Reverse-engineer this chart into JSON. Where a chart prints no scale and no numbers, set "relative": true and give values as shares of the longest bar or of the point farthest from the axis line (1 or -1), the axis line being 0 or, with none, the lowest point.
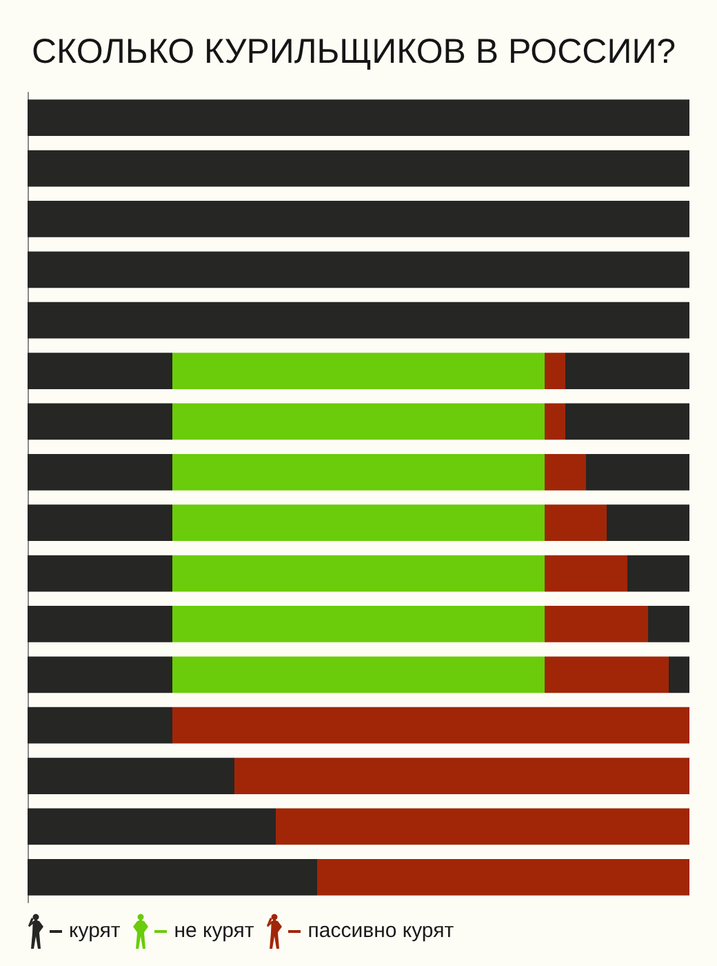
{
  "chart_data": {
    "type": "bar",
    "orientation": "horizontal",
    "stacked": true,
    "relative": true,
    "title": "СКОЛЬКО КУРИЛЬЩИКОВ В РОССИИ?",
    "categories": [
      null,
      null,
      null,
      null,
      null,
      null,
      null,
      null,
      null,
      null,
      null,
      null,
      null,
      null,
      null,
      null
    ],
    "legend": "bottom left",
    "series": [
      {
        "name": "курят",
        "color": "#262624",
        "values": [
          1,
          1,
          1,
          1,
          1,
          0.21875,
          0.21875,
          0.21875,
          0.21875,
          0.21875,
          0.21875,
          0.21875,
          0.21875,
          0.3125,
          0.375,
          0.4375
        ]
      },
      {
        "name": "не курят",
        "color": "#6acc0a",
        "values": [
          0,
          0,
          0,
          0,
          0,
          0.5625,
          0.5625,
          0.5625,
          0.5625,
          0.5625,
          0.5625,
          0.5625,
          0,
          0,
          0,
          0
        ]
      },
      {
        "name": "пассивно курят",
        "color": "#a12608",
        "values": [
          0,
          0,
          0,
          0,
          0,
          0.03125,
          0.03125,
          0.0625,
          0.09375,
          0.125,
          0.15625,
          0.1875,
          0.78125,
          0.6875,
          0.625,
          0.5625
        ]
      },
      {
        "color": "#262624",
        "values": [
          0,
          0,
          0,
          0,
          0,
          0.1875,
          0.1875,
          0.15625,
          0.125,
          0.09375,
          0.0625,
          0.03125,
          0,
          0,
          0,
          0
        ]
      }
    ]
  }
}
